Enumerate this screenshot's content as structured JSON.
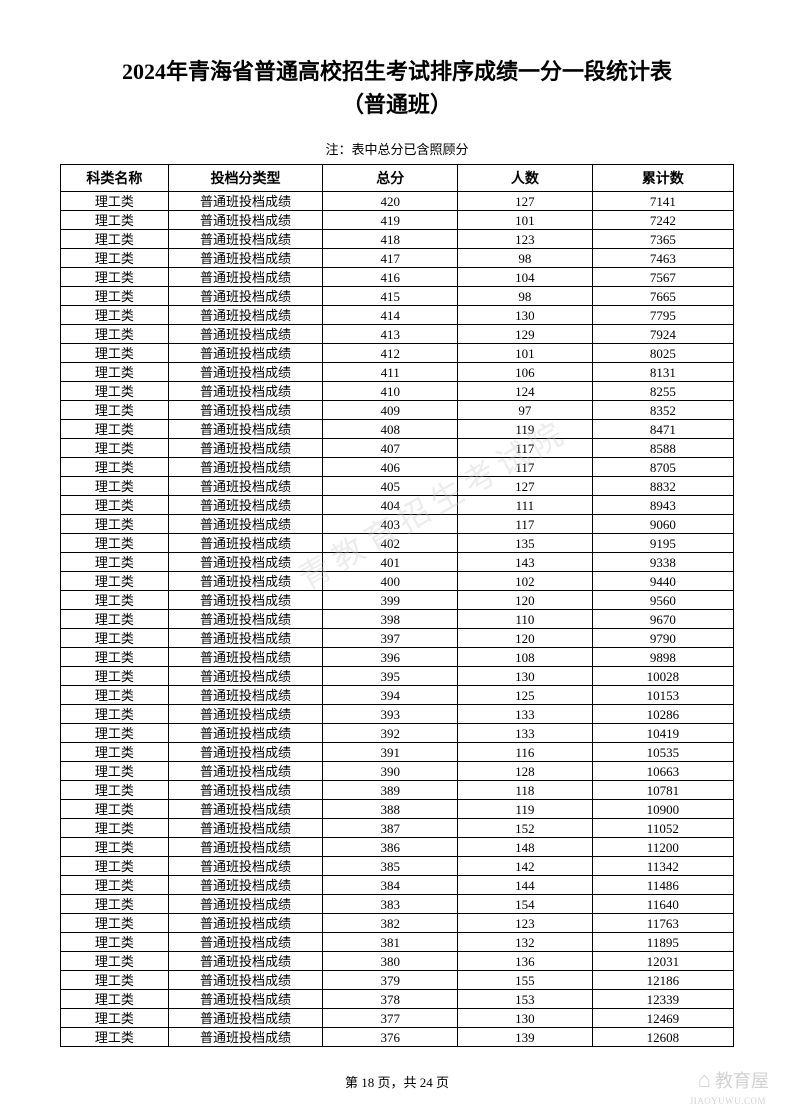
{
  "title_line1": "2024年青海省普通高校招生考试排序成绩一分一段统计表",
  "title_line2": "（普通班）",
  "note": "注：表中总分已含照顾分",
  "table": {
    "columns": [
      "科类名称",
      "投档分类型",
      "总分",
      "人数",
      "累计数"
    ],
    "category": "理工类",
    "type": "普通班投档成绩",
    "rows": [
      [
        420,
        127,
        7141
      ],
      [
        419,
        101,
        7242
      ],
      [
        418,
        123,
        7365
      ],
      [
        417,
        98,
        7463
      ],
      [
        416,
        104,
        7567
      ],
      [
        415,
        98,
        7665
      ],
      [
        414,
        130,
        7795
      ],
      [
        413,
        129,
        7924
      ],
      [
        412,
        101,
        8025
      ],
      [
        411,
        106,
        8131
      ],
      [
        410,
        124,
        8255
      ],
      [
        409,
        97,
        8352
      ],
      [
        408,
        119,
        8471
      ],
      [
        407,
        117,
        8588
      ],
      [
        406,
        117,
        8705
      ],
      [
        405,
        127,
        8832
      ],
      [
        404,
        111,
        8943
      ],
      [
        403,
        117,
        9060
      ],
      [
        402,
        135,
        9195
      ],
      [
        401,
        143,
        9338
      ],
      [
        400,
        102,
        9440
      ],
      [
        399,
        120,
        9560
      ],
      [
        398,
        110,
        9670
      ],
      [
        397,
        120,
        9790
      ],
      [
        396,
        108,
        9898
      ],
      [
        395,
        130,
        10028
      ],
      [
        394,
        125,
        10153
      ],
      [
        393,
        133,
        10286
      ],
      [
        392,
        133,
        10419
      ],
      [
        391,
        116,
        10535
      ],
      [
        390,
        128,
        10663
      ],
      [
        389,
        118,
        10781
      ],
      [
        388,
        119,
        10900
      ],
      [
        387,
        152,
        11052
      ],
      [
        386,
        148,
        11200
      ],
      [
        385,
        142,
        11342
      ],
      [
        384,
        144,
        11486
      ],
      [
        383,
        154,
        11640
      ],
      [
        382,
        123,
        11763
      ],
      [
        381,
        132,
        11895
      ],
      [
        380,
        136,
        12031
      ],
      [
        379,
        155,
        12186
      ],
      [
        378,
        153,
        12339
      ],
      [
        377,
        130,
        12469
      ],
      [
        376,
        139,
        12608
      ]
    ]
  },
  "footer": "第 18 页，共 24 页",
  "watermark_bottom": "教育屋",
  "watermark_url": "JIAOYUWU.COM",
  "watermark_diagonal": "青教育招生考试院"
}
